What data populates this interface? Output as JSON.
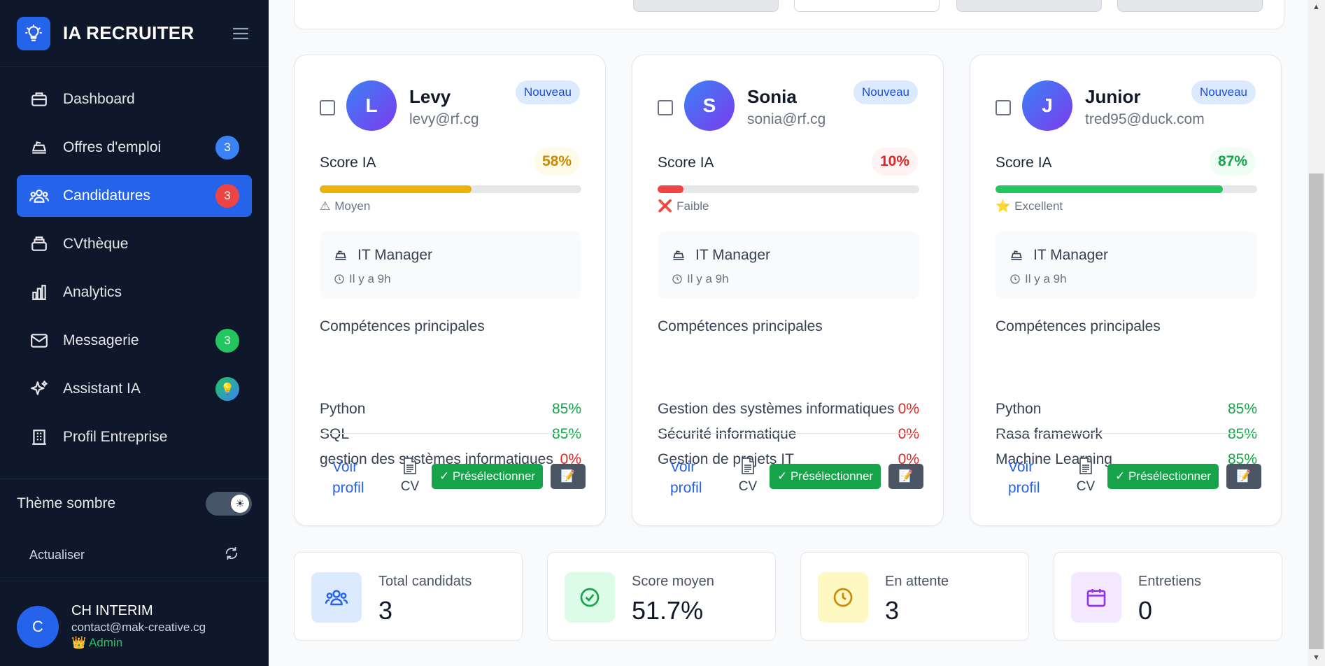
{
  "brand": {
    "name": "IA RECRUITER"
  },
  "nav": [
    {
      "label": "Dashboard",
      "badge": null,
      "name": "dashboard"
    },
    {
      "label": "Offres d'emploi",
      "badge": "3",
      "badge_color": "#3b82f6",
      "name": "offres"
    },
    {
      "label": "Candidatures",
      "badge": "3",
      "badge_color": "#ef4444",
      "name": "candidatures",
      "active": true
    },
    {
      "label": "CVthèque",
      "badge": null,
      "name": "cvtheque"
    },
    {
      "label": "Analytics",
      "badge": null,
      "name": "analytics"
    },
    {
      "label": "Messagerie",
      "badge": "3",
      "badge_color": "#22c55e",
      "name": "messagerie"
    },
    {
      "label": "Assistant IA",
      "badge": "💡",
      "name": "assistant"
    },
    {
      "label": "Profil Entreprise",
      "badge": null,
      "name": "profil"
    }
  ],
  "theme": {
    "label": "Thème sombre",
    "knob": "☀"
  },
  "refresh": {
    "label": "Actualiser"
  },
  "user": {
    "initial": "C",
    "name": "CH INTERIM",
    "email": "contact@mak-creative.cg",
    "role_icon": "👑",
    "role": "Admin"
  },
  "cards": [
    {
      "initial": "L",
      "name": "Levy",
      "email": "levy@rf.cg",
      "status": "Nouveau",
      "score_label": "Score IA",
      "score": "58%",
      "score_value": 58,
      "score_color": "#ca8a04",
      "score_bg": "#fefce8",
      "bar_color": "#eab308",
      "level_icon": "⚠",
      "level": "Moyen",
      "job": "IT Manager",
      "time": "Il y a 9h",
      "skills_title": "Compétences principales",
      "skills": [
        {
          "name": "Python",
          "pct": "85%",
          "color": "#16a34a"
        },
        {
          "name": "SQL",
          "pct": "85%",
          "color": "#16a34a"
        },
        {
          "name": "gestion des systèmes informatiques",
          "pct": "0%",
          "color": "#dc2626"
        }
      ],
      "voir_line1": "Voir",
      "voir_line2": "profil",
      "cv": "CV",
      "presel": "✓ Présélectionner",
      "note": "📝"
    },
    {
      "initial": "S",
      "name": "Sonia",
      "email": "sonia@rf.cg",
      "status": "Nouveau",
      "score_label": "Score IA",
      "score": "10%",
      "score_value": 10,
      "score_color": "#dc2626",
      "score_bg": "#fef2f2",
      "bar_color": "#ef4444",
      "level_icon": "❌",
      "level": "Faible",
      "job": "IT Manager",
      "time": "Il y a 9h",
      "skills_title": "Compétences principales",
      "skills": [
        {
          "name": "Gestion des systèmes informatiques",
          "pct": "0%",
          "color": "#dc2626"
        },
        {
          "name": "Sécurité informatique",
          "pct": "0%",
          "color": "#dc2626"
        },
        {
          "name": "Gestion de projets IT",
          "pct": "0%",
          "color": "#dc2626"
        }
      ],
      "voir_line1": "Voir",
      "voir_line2": "profil",
      "cv": "CV",
      "presel": "✓ Présélectionner",
      "note": "📝"
    },
    {
      "initial": "J",
      "name": "Junior",
      "email": "tred95@duck.com",
      "status": "Nouveau",
      "score_label": "Score IA",
      "score": "87%",
      "score_value": 87,
      "score_color": "#16a34a",
      "score_bg": "#f0fdf4",
      "bar_color": "#22c55e",
      "level_icon": "⭐",
      "level": "Excellent",
      "job": "IT Manager",
      "time": "Il y a 9h",
      "skills_title": "Compétences principales",
      "skills": [
        {
          "name": "Python",
          "pct": "85%",
          "color": "#16a34a"
        },
        {
          "name": "Rasa framework",
          "pct": "85%",
          "color": "#16a34a"
        },
        {
          "name": "Machine Learning",
          "pct": "85%",
          "color": "#16a34a"
        }
      ],
      "voir_line1": "Voir",
      "voir_line2": "profil",
      "cv": "CV",
      "presel": "✓ Présélectionner",
      "note": "📝"
    }
  ],
  "stats": [
    {
      "label": "Total candidats",
      "value": "3",
      "icon": "users-icon",
      "bg": "#dbeafe",
      "color": "#2563eb"
    },
    {
      "label": "Score moyen",
      "value": "51.7%",
      "icon": "check-circle-icon",
      "bg": "#dcfce7",
      "color": "#16a34a"
    },
    {
      "label": "En attente",
      "value": "3",
      "icon": "clock-icon",
      "bg": "#fef9c3",
      "color": "#ca8a04"
    },
    {
      "label": "Entretiens",
      "value": "0",
      "icon": "calendar-icon",
      "bg": "#f3e8ff",
      "color": "#9333ea"
    }
  ]
}
